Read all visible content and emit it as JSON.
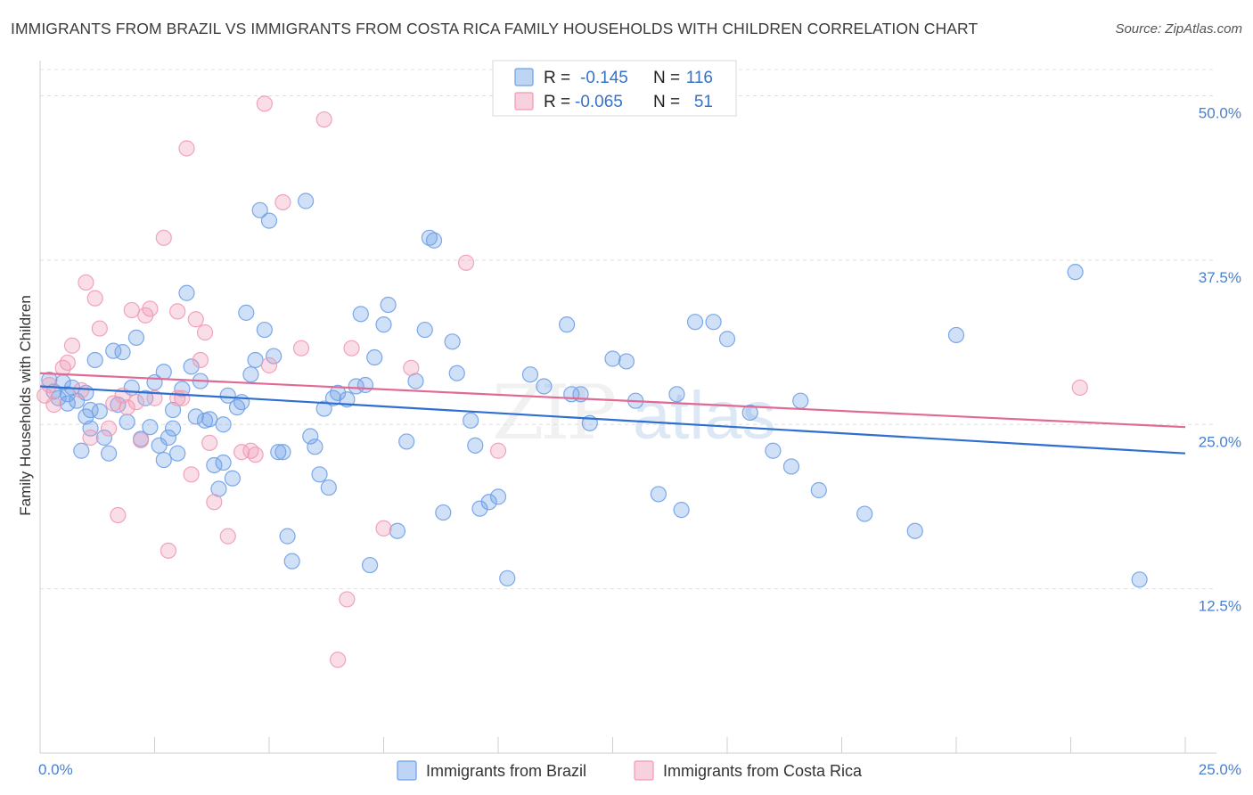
{
  "header": {
    "title": "IMMIGRANTS FROM BRAZIL VS IMMIGRANTS FROM COSTA RICA FAMILY HOUSEHOLDS WITH CHILDREN CORRELATION CHART",
    "source": "Source: ZipAtlas.com"
  },
  "watermark": {
    "zip": "ZIP",
    "atlas": "atlas"
  },
  "legend_top": {
    "r_label": "R =",
    "n_label": "N =",
    "entries": [
      {
        "r": "-0.145",
        "n": "116",
        "color": "#6fa0e8"
      },
      {
        "r": "-0.065",
        "n": "51",
        "color": "#f09ab5"
      }
    ]
  },
  "legend_bottom": [
    {
      "label": "Immigrants from Brazil",
      "color": "#6fa0e8"
    },
    {
      "label": "Immigrants from Costa Rica",
      "color": "#f09ab5"
    }
  ],
  "chart_data": {
    "type": "scatter",
    "title": "IMMIGRANTS FROM BRAZIL VS IMMIGRANTS FROM COSTA RICA FAMILY HOUSEHOLDS WITH CHILDREN CORRELATION CHART",
    "xlabel": "",
    "ylabel": "Family Households with Children",
    "xlim": [
      0,
      25
    ],
    "ylim": [
      0,
      52
    ],
    "x_tick_labels": [
      "0.0%",
      "25.0%"
    ],
    "y_ticks": [
      12.5,
      25,
      37.5,
      50
    ],
    "y_tick_labels": [
      "12.5%",
      "25.0%",
      "37.5%",
      "50.0%"
    ],
    "grid": "horizontal dashed",
    "legend": "top-center",
    "series": [
      {
        "name": "Immigrants from Brazil",
        "color": "#6fa0e8",
        "trend": {
          "x": [
            0,
            25
          ],
          "y": [
            27.9,
            22.8
          ]
        },
        "points": [
          [
            0.2,
            28.4
          ],
          [
            0.3,
            27.5
          ],
          [
            0.4,
            27.0
          ],
          [
            0.5,
            28.2
          ],
          [
            0.6,
            27.3
          ],
          [
            0.7,
            27.8
          ],
          [
            0.8,
            26.8
          ],
          [
            0.9,
            23.0
          ],
          [
            1.0,
            27.4
          ],
          [
            1.0,
            25.6
          ],
          [
            1.1,
            26.1
          ],
          [
            1.2,
            29.9
          ],
          [
            1.3,
            26.0
          ],
          [
            1.4,
            24.0
          ],
          [
            1.5,
            22.8
          ],
          [
            1.6,
            30.6
          ],
          [
            1.7,
            26.5
          ],
          [
            1.8,
            30.5
          ],
          [
            1.9,
            25.2
          ],
          [
            2.0,
            27.8
          ],
          [
            2.1,
            31.6
          ],
          [
            2.2,
            23.9
          ],
          [
            2.3,
            27.0
          ],
          [
            2.4,
            24.8
          ],
          [
            2.5,
            28.2
          ],
          [
            2.6,
            23.4
          ],
          [
            2.7,
            29.0
          ],
          [
            2.7,
            22.3
          ],
          [
            2.8,
            24.0
          ],
          [
            2.9,
            24.7
          ],
          [
            3.0,
            22.8
          ],
          [
            3.1,
            27.7
          ],
          [
            3.2,
            35.0
          ],
          [
            3.3,
            29.4
          ],
          [
            3.4,
            25.6
          ],
          [
            3.5,
            28.3
          ],
          [
            3.6,
            25.3
          ],
          [
            3.7,
            25.4
          ],
          [
            3.8,
            21.9
          ],
          [
            3.9,
            20.1
          ],
          [
            4.0,
            22.1
          ],
          [
            4.1,
            27.2
          ],
          [
            4.2,
            20.9
          ],
          [
            4.3,
            26.3
          ],
          [
            4.4,
            26.7
          ],
          [
            4.5,
            33.5
          ],
          [
            4.6,
            28.8
          ],
          [
            4.7,
            29.9
          ],
          [
            4.8,
            41.3
          ],
          [
            4.9,
            32.2
          ],
          [
            5.0,
            40.5
          ],
          [
            5.1,
            30.2
          ],
          [
            5.2,
            22.9
          ],
          [
            5.3,
            22.9
          ],
          [
            5.4,
            16.5
          ],
          [
            5.5,
            14.6
          ],
          [
            5.8,
            42.0
          ],
          [
            5.9,
            24.1
          ],
          [
            6.0,
            23.3
          ],
          [
            6.1,
            21.2
          ],
          [
            6.2,
            26.2
          ],
          [
            6.3,
            20.2
          ],
          [
            6.4,
            27.0
          ],
          [
            6.5,
            27.4
          ],
          [
            6.9,
            27.9
          ],
          [
            7.0,
            33.4
          ],
          [
            7.1,
            28.0
          ],
          [
            7.2,
            14.3
          ],
          [
            7.3,
            30.1
          ],
          [
            7.5,
            32.6
          ],
          [
            7.6,
            34.1
          ],
          [
            7.8,
            16.9
          ],
          [
            8.0,
            23.7
          ],
          [
            8.2,
            28.3
          ],
          [
            8.4,
            32.2
          ],
          [
            8.5,
            39.2
          ],
          [
            8.6,
            39.0
          ],
          [
            8.8,
            18.3
          ],
          [
            9.0,
            31.3
          ],
          [
            9.1,
            28.9
          ],
          [
            9.4,
            25.3
          ],
          [
            9.6,
            18.6
          ],
          [
            9.8,
            19.1
          ],
          [
            10.0,
            19.5
          ],
          [
            10.2,
            13.3
          ],
          [
            10.7,
            28.8
          ],
          [
            11.0,
            27.9
          ],
          [
            11.5,
            32.6
          ],
          [
            11.6,
            27.3
          ],
          [
            11.8,
            27.3
          ],
          [
            12.0,
            25.1
          ],
          [
            12.5,
            30.0
          ],
          [
            13.0,
            26.8
          ],
          [
            13.5,
            19.7
          ],
          [
            13.9,
            27.3
          ],
          [
            14.0,
            18.5
          ],
          [
            14.3,
            32.8
          ],
          [
            14.7,
            32.8
          ],
          [
            15.0,
            31.5
          ],
          [
            16.0,
            23.0
          ],
          [
            16.4,
            21.8
          ],
          [
            16.6,
            26.8
          ],
          [
            17.0,
            20.0
          ],
          [
            18.0,
            18.2
          ],
          [
            19.1,
            16.9
          ],
          [
            20.0,
            31.8
          ],
          [
            22.6,
            36.6
          ],
          [
            24.0,
            13.2
          ],
          [
            0.6,
            26.6
          ],
          [
            1.1,
            24.7
          ],
          [
            2.9,
            26.1
          ],
          [
            4.0,
            25.0
          ],
          [
            6.7,
            26.9
          ],
          [
            9.5,
            23.4
          ],
          [
            12.8,
            29.8
          ],
          [
            15.5,
            25.9
          ]
        ]
      },
      {
        "name": "Immigrants from Costa Rica",
        "color": "#f09ab5",
        "trend": {
          "x": [
            0,
            25
          ],
          "y": [
            28.9,
            24.8
          ]
        },
        "points": [
          [
            0.1,
            27.2
          ],
          [
            0.2,
            28.0
          ],
          [
            0.3,
            26.5
          ],
          [
            0.5,
            29.3
          ],
          [
            0.6,
            29.7
          ],
          [
            0.7,
            31.0
          ],
          [
            0.9,
            27.6
          ],
          [
            1.0,
            35.8
          ],
          [
            1.1,
            24.0
          ],
          [
            1.2,
            34.6
          ],
          [
            1.3,
            32.3
          ],
          [
            1.5,
            24.7
          ],
          [
            1.6,
            26.6
          ],
          [
            1.7,
            18.1
          ],
          [
            1.8,
            27.2
          ],
          [
            2.0,
            33.7
          ],
          [
            2.1,
            26.7
          ],
          [
            2.2,
            23.8
          ],
          [
            2.3,
            33.3
          ],
          [
            2.4,
            33.8
          ],
          [
            2.5,
            27.0
          ],
          [
            2.7,
            39.2
          ],
          [
            2.8,
            15.4
          ],
          [
            3.0,
            33.6
          ],
          [
            3.1,
            27.0
          ],
          [
            3.2,
            46.0
          ],
          [
            3.3,
            21.2
          ],
          [
            3.4,
            33.0
          ],
          [
            3.5,
            29.9
          ],
          [
            3.6,
            32.0
          ],
          [
            3.7,
            23.6
          ],
          [
            3.8,
            19.1
          ],
          [
            4.1,
            16.5
          ],
          [
            4.4,
            22.9
          ],
          [
            4.6,
            23.0
          ],
          [
            4.7,
            22.7
          ],
          [
            4.9,
            49.4
          ],
          [
            5.0,
            29.5
          ],
          [
            5.3,
            41.9
          ],
          [
            5.7,
            30.8
          ],
          [
            6.2,
            48.2
          ],
          [
            6.5,
            7.1
          ],
          [
            6.7,
            11.7
          ],
          [
            6.8,
            30.8
          ],
          [
            7.5,
            17.1
          ],
          [
            8.1,
            29.3
          ],
          [
            9.3,
            37.3
          ],
          [
            10.0,
            23.0
          ],
          [
            22.7,
            27.8
          ],
          [
            1.9,
            26.3
          ],
          [
            3.0,
            27.0
          ]
        ]
      }
    ]
  }
}
